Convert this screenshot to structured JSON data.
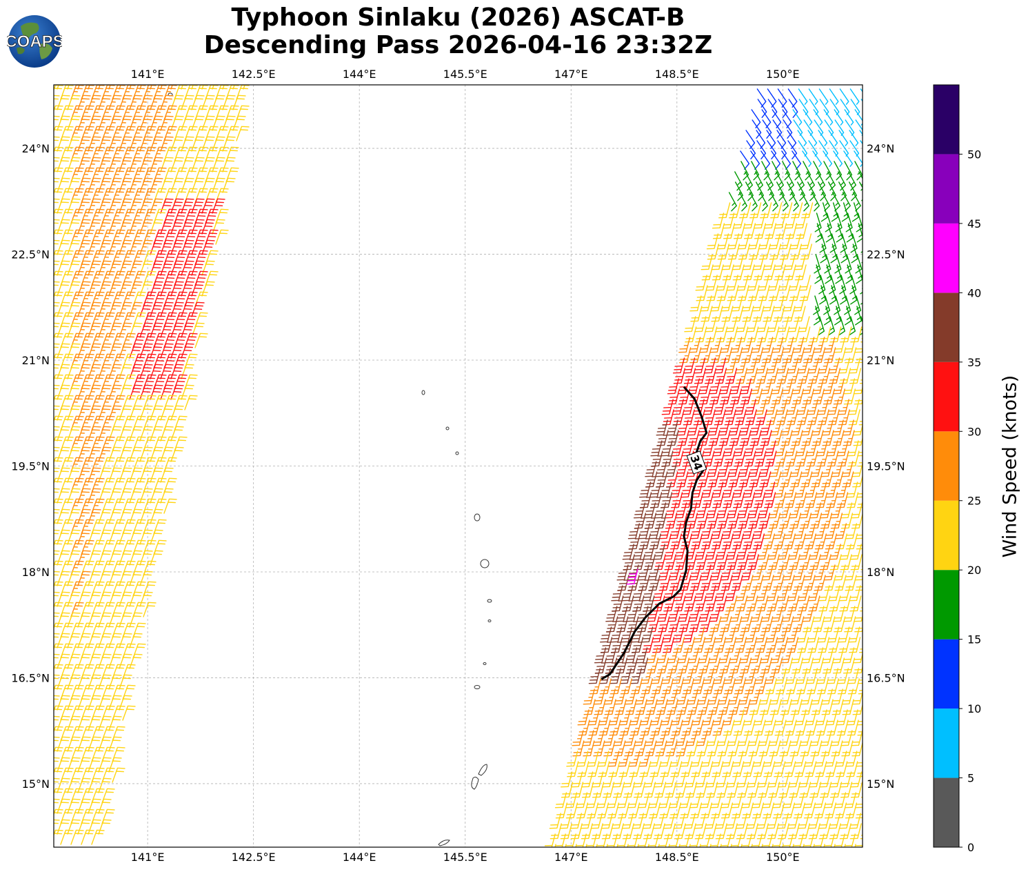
{
  "title": {
    "line1": "Typhoon Sinlaku (2026) ASCAT-B",
    "line2": "Descending Pass 2026-04-16 23:32Z"
  },
  "logo": {
    "text": "COAPS",
    "icon": "globe-logo-icon"
  },
  "map": {
    "lon_range": [
      139.67,
      151.13
    ],
    "lat_range": [
      14.1,
      24.9
    ],
    "lon_ticks": [
      141.0,
      142.5,
      144.0,
      145.5,
      147.0,
      148.5,
      150.0
    ],
    "lon_labels": [
      "141°E",
      "142.5°E",
      "144°E",
      "145.5°E",
      "147°E",
      "148.5°E",
      "150°E"
    ],
    "lat_ticks": [
      15.0,
      16.5,
      18.0,
      19.5,
      21.0,
      22.5,
      24.0
    ],
    "lat_labels": [
      "15°N",
      "16.5°N",
      "18°N",
      "19.5°N",
      "21°N",
      "22.5°N",
      "24°N"
    ],
    "gridlines": true,
    "contour_label": "34",
    "contour_34kt": [
      [
        148.6,
        20.62
      ],
      [
        148.75,
        20.45
      ],
      [
        148.85,
        20.2
      ],
      [
        148.92,
        19.97
      ],
      [
        148.83,
        19.85
      ],
      [
        148.78,
        19.7
      ],
      [
        148.88,
        19.45
      ],
      [
        148.78,
        19.3
      ],
      [
        148.72,
        19.12
      ],
      [
        148.7,
        18.9
      ],
      [
        148.63,
        18.7
      ],
      [
        148.6,
        18.5
      ],
      [
        148.65,
        18.3
      ],
      [
        148.63,
        18.02
      ],
      [
        148.55,
        17.75
      ],
      [
        148.45,
        17.65
      ],
      [
        148.25,
        17.55
      ],
      [
        148.05,
        17.35
      ],
      [
        147.9,
        17.15
      ],
      [
        147.75,
        16.85
      ],
      [
        147.55,
        16.55
      ],
      [
        147.43,
        16.48
      ]
    ]
  },
  "colorbar": {
    "label": "Wind Speed (knots)",
    "ticks": [
      0,
      5,
      10,
      15,
      20,
      25,
      30,
      35,
      40,
      45,
      50
    ],
    "bins": [
      {
        "min": 0,
        "max": 5,
        "color": "#595959"
      },
      {
        "min": 5,
        "max": 10,
        "color": "#00bfff"
      },
      {
        "min": 10,
        "max": 15,
        "color": "#0033ff"
      },
      {
        "min": 15,
        "max": 20,
        "color": "#009900"
      },
      {
        "min": 20,
        "max": 25,
        "color": "#ffd412"
      },
      {
        "min": 25,
        "max": 30,
        "color": "#ff8c0a"
      },
      {
        "min": 30,
        "max": 35,
        "color": "#ff1111"
      },
      {
        "min": 35,
        "max": 40,
        "color": "#843b2a"
      },
      {
        "min": 40,
        "max": 45,
        "color": "#ff00ff"
      },
      {
        "min": 45,
        "max": 50,
        "color": "#8800bb"
      },
      {
        "min": 50,
        "max": 55,
        "color": "#2a0066"
      }
    ]
  }
}
